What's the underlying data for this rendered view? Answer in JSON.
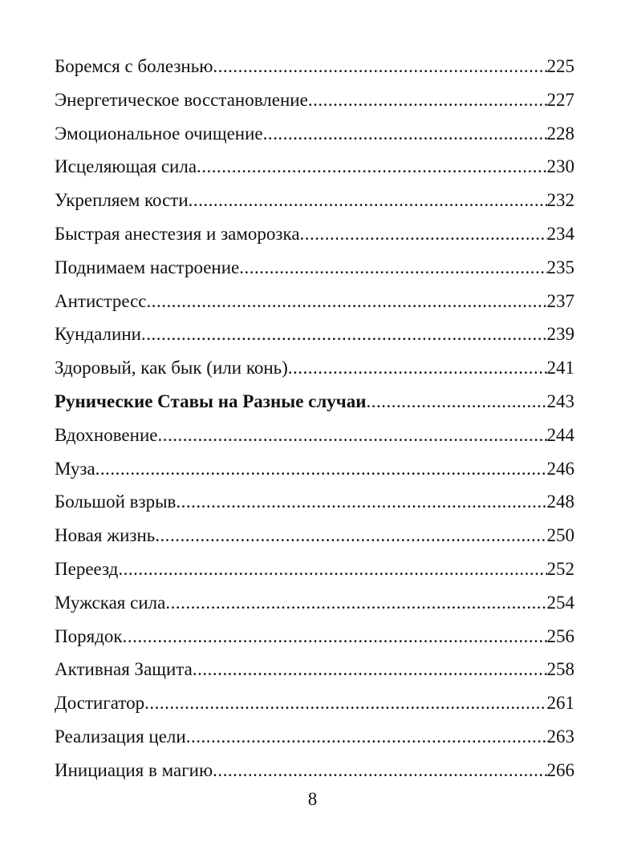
{
  "toc": [
    {
      "title": "Боремся с болезнью",
      "page": "225",
      "bold": false
    },
    {
      "title": "Энергетическое восстановление",
      "page": "227",
      "bold": false
    },
    {
      "title": "Эмоциональное очищение",
      "page": "228",
      "bold": false
    },
    {
      "title": "Исцеляющая сила",
      "page": "230",
      "bold": false
    },
    {
      "title": "Укрепляем кости",
      "page": "232",
      "bold": false
    },
    {
      "title": "Быстрая анестезия и заморозка",
      "page": "234",
      "bold": false
    },
    {
      "title": "Поднимаем настроение",
      "page": "235",
      "bold": false
    },
    {
      "title": "Антистресс",
      "page": "237",
      "bold": false
    },
    {
      "title": "Кундалини",
      "page": "239",
      "bold": false
    },
    {
      "title": "Здоровый, как бык (или конь)",
      "page": "241",
      "bold": false
    },
    {
      "title": "Рунические Ставы на Разные случаи",
      "page": "243",
      "bold": true
    },
    {
      "title": "Вдохновение",
      "page": "244",
      "bold": false
    },
    {
      "title": "Муза",
      "page": "246",
      "bold": false
    },
    {
      "title": "Большой взрыв",
      "page": "248",
      "bold": false
    },
    {
      "title": "Новая жизнь",
      "page": "250",
      "bold": false
    },
    {
      "title": "Переезд",
      "page": "252",
      "bold": false
    },
    {
      "title": "Мужская сила",
      "page": "254",
      "bold": false
    },
    {
      "title": "Порядок",
      "page": "256",
      "bold": false
    },
    {
      "title": "Активная Защита",
      "page": "258",
      "bold": false
    },
    {
      "title": "Достигатор",
      "page": "261",
      "bold": false
    },
    {
      "title": "Реализация цели",
      "page": "263",
      "bold": false
    },
    {
      "title": "Инициация в магию",
      "page": "266",
      "bold": false
    }
  ],
  "page_number": "8"
}
